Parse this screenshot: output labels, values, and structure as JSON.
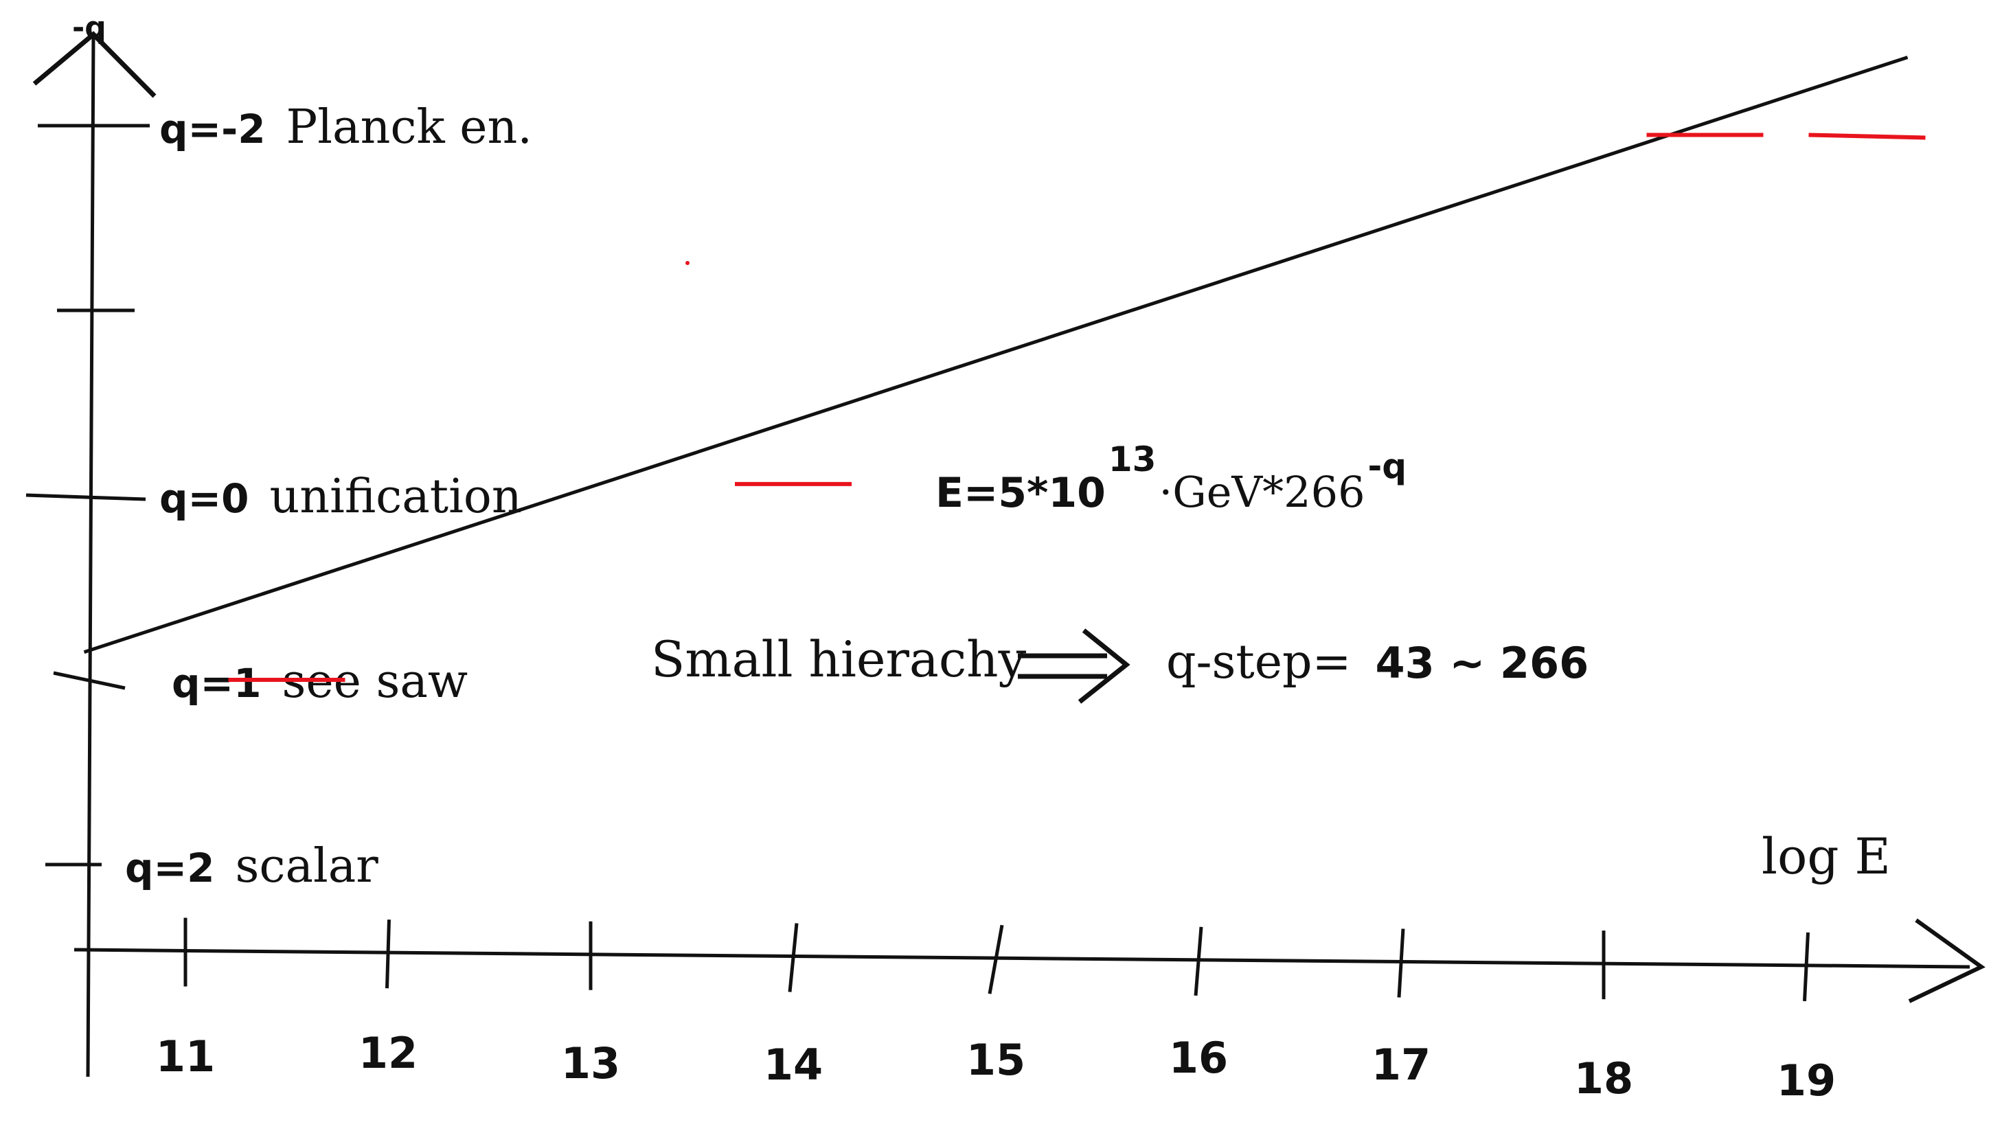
{
  "colors": {
    "ink": "#111111",
    "marker": "#e8141d",
    "background": "#ffffff"
  },
  "chart_data": {
    "type": "line",
    "x_label": "log E",
    "y_label": "-q",
    "x_ticks": [
      "11",
      "12",
      "13",
      "14",
      "15",
      "16",
      "17",
      "18",
      "19"
    ],
    "y_ticks": [
      {
        "q": -2,
        "label": "q=-2",
        "desc": "Planck en."
      },
      {
        "q": -1,
        "label": "",
        "desc": ""
      },
      {
        "q": 0,
        "label": "q=0",
        "desc": "unification"
      },
      {
        "q": 1,
        "label": "q=1",
        "desc": "see saw"
      },
      {
        "q": 2,
        "label": "q=2",
        "desc": "scalar"
      }
    ],
    "series": [
      {
        "x": [
          10.5,
          19.5
        ],
        "y": [
          -0.85,
          2.37
        ]
      }
    ],
    "red_markers": [
      {
        "x": 11.5,
        "y": 1.0
      },
      {
        "x": 14.0,
        "y": -0.06
      },
      {
        "x": 18.5,
        "y": -1.95
      },
      {
        "x": 19.3,
        "y": -1.95
      }
    ],
    "formula": {
      "prefix": "E=5*10",
      "exp1": "13",
      "mid": "·GeV*266",
      "exp2": "-q"
    },
    "note": {
      "left": "Small hierachy",
      "right_word": "q-step=",
      "right_value": "43 ~ 266"
    }
  }
}
